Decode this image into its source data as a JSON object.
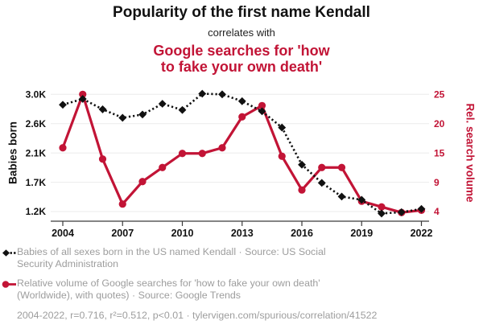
{
  "header": {
    "title": "Popularity of the first name Kendall",
    "connector": "correlates with",
    "subtitle_lines": [
      "Google searches for 'how",
      "to fake your own death'"
    ]
  },
  "colors": {
    "accent_red": "#c21436",
    "series_black": "#111111",
    "legend_gray": "#9d9d9d",
    "gridline": "#ebebeb",
    "axis_line": "#3a3a3a"
  },
  "legend": {
    "series1": {
      "line1": "Babies of all sexes born in the US named Kendall · Source: US Social",
      "line2": "Security Administration"
    },
    "series2": {
      "line1": "Relative volume of Google searches for 'how to fake your own death'",
      "line2": "(Worldwide), with quotes) · Source: Google Trends"
    },
    "footnote": "2004-2022, r=0.716, r²=0.512, p<0.01 · tylervigen.com/spurious/correlation/41522"
  },
  "chart_data": {
    "type": "line",
    "title": "Popularity of the first name Kendall correlates with Google searches for 'how to fake your own death'",
    "x": [
      2004,
      2005,
      2006,
      2007,
      2008,
      2009,
      2010,
      2011,
      2012,
      2013,
      2014,
      2015,
      2016,
      2017,
      2018,
      2019,
      2020,
      2021,
      2022
    ],
    "x_ticks": [
      2004,
      2007,
      2010,
      2013,
      2016,
      2019,
      2022
    ],
    "series": [
      {
        "name": "Babies of all sexes born in the US named Kendall",
        "axis": "left",
        "style": "dashed-diamond",
        "color": "#111111",
        "values": [
          2840,
          2930,
          2770,
          2640,
          2690,
          2855,
          2760,
          3010,
          3000,
          2895,
          2740,
          2490,
          1920,
          1640,
          1430,
          1380,
          1170,
          1190,
          1240
        ]
      },
      {
        "name": "Relative volume of Google searches for 'how to fake your own death' (Worldwide)",
        "axis": "right",
        "style": "solid-circle",
        "color": "#c21436",
        "values": [
          15.5,
          25,
          13.5,
          5.5,
          9.5,
          12,
          14.5,
          14.5,
          15.5,
          21,
          23,
          14,
          8,
          12,
          12,
          6,
          5,
          4,
          4.4
        ]
      }
    ],
    "left_axis": {
      "label": "Babies born",
      "ticks": [
        "3.0K",
        "2.6K",
        "2.1K",
        "1.7K",
        "1.2K"
      ],
      "range": [
        1200,
        3000
      ]
    },
    "right_axis": {
      "label": "Rel. search volume",
      "ticks": [
        "25",
        "20",
        "15",
        "9",
        "4"
      ],
      "range": [
        4.17,
        25
      ]
    },
    "grid": true,
    "legend_position": "bottom"
  }
}
